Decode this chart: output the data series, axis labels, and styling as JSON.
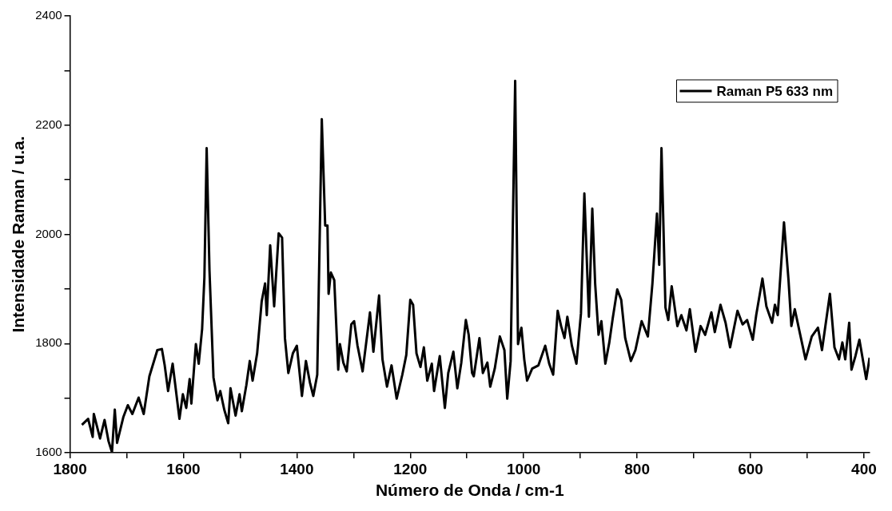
{
  "chart_data": {
    "type": "line",
    "xlabel": "Número de Onda / cm-1",
    "ylabel": "Intensidade Raman / u.a.",
    "xlim": [
      1800,
      390
    ],
    "ylim": [
      1600,
      2400
    ],
    "xticks": [
      1800,
      {
        "value": 1700,
        "label": null
      },
      1600,
      {
        "value": 1500,
        "label": null
      },
      1400,
      {
        "value": 1300,
        "label": null
      },
      1200,
      {
        "value": 1100,
        "label": null
      },
      1000,
      {
        "value": 900,
        "label": null
      },
      800,
      {
        "value": 700,
        "label": null
      },
      600,
      {
        "value": 500,
        "label": null
      },
      400
    ],
    "yticks": [
      1600,
      {
        "value": 1700,
        "label": null
      },
      1800,
      {
        "value": 1900,
        "label": null
      },
      2000,
      {
        "value": 2100,
        "label": null
      },
      2200,
      {
        "value": 2300,
        "label": null
      },
      2400
    ],
    "grid": false,
    "legend": "top right",
    "marker": "none",
    "line_style": "solid",
    "series": [
      {
        "name": "Raman P5 633 nm",
        "color": "#000000",
        "x": [
          1779,
          1768,
          1760,
          1758,
          1747,
          1739,
          1732,
          1726,
          1721,
          1717,
          1706,
          1698,
          1690,
          1679,
          1670,
          1660,
          1646,
          1638,
          1633,
          1627,
          1619,
          1607,
          1601,
          1595,
          1589,
          1586,
          1578,
          1573,
          1567,
          1563,
          1559,
          1554,
          1547,
          1540,
          1535,
          1528,
          1521,
          1517,
          1508,
          1501,
          1497,
          1489,
          1483,
          1478,
          1470,
          1462,
          1456,
          1453,
          1447,
          1440,
          1432,
          1426,
          1421,
          1415,
          1407,
          1400,
          1391,
          1384,
          1377,
          1371,
          1364,
          1356,
          1350,
          1346,
          1344,
          1340,
          1334,
          1327,
          1324,
          1318,
          1312,
          1304,
          1299,
          1293,
          1284,
          1271,
          1265,
          1255,
          1249,
          1241,
          1233,
          1224,
          1214,
          1207,
          1200,
          1195,
          1189,
          1182,
          1176,
          1170,
          1162,
          1158,
          1148,
          1139,
          1133,
          1124,
          1117,
          1110,
          1102,
          1097,
          1091,
          1088,
          1078,
          1072,
          1064,
          1059,
          1051,
          1042,
          1034,
          1029,
          1023,
          1015,
          1010,
          1004,
          999,
          994,
          985,
          974,
          962,
          955,
          948,
          940,
          934,
          928,
          923,
          915,
          907,
          899,
          893,
          885,
          879,
          874,
          868,
          863,
          856,
          849,
          843,
          835,
          828,
          821,
          811,
          803,
          792,
          781,
          773,
          765,
          761,
          757,
          750,
          745,
          739,
          729,
          722,
          713,
          707,
          697,
          688,
          680,
          669,
          663,
          653,
          644,
          636,
          623,
          614,
          606,
          596,
          590,
          579,
          572,
          562,
          557,
          552,
          541,
          533,
          528,
          522,
          514,
          503,
          492,
          481,
          474,
          460,
          452,
          444,
          438,
          433,
          426,
          422,
          415,
          408,
          401,
          396,
          390
        ],
        "values": [
          1651,
          1662,
          1629,
          1671,
          1626,
          1660,
          1621,
          1601,
          1679,
          1618,
          1665,
          1687,
          1671,
          1701,
          1671,
          1740,
          1788,
          1790,
          1760,
          1713,
          1763,
          1662,
          1707,
          1682,
          1735,
          1690,
          1799,
          1763,
          1827,
          1921,
          2158,
          1933,
          1738,
          1696,
          1713,
          1679,
          1654,
          1718,
          1668,
          1707,
          1676,
          1724,
          1768,
          1732,
          1782,
          1877,
          1910,
          1852,
          1980,
          1868,
          2002,
          1994,
          1810,
          1746,
          1782,
          1796,
          1704,
          1768,
          1729,
          1704,
          1743,
          2211,
          2016,
          2016,
          1891,
          1930,
          1916,
          1752,
          1799,
          1765,
          1749,
          1835,
          1841,
          1796,
          1749,
          1857,
          1785,
          1888,
          1771,
          1721,
          1760,
          1699,
          1743,
          1779,
          1880,
          1871,
          1782,
          1757,
          1793,
          1732,
          1763,
          1713,
          1777,
          1682,
          1746,
          1785,
          1718,
          1765,
          1843,
          1816,
          1746,
          1740,
          1810,
          1746,
          1765,
          1721,
          1754,
          1813,
          1788,
          1699,
          1768,
          2281,
          1799,
          1829,
          1771,
          1732,
          1754,
          1760,
          1796,
          1763,
          1743,
          1860,
          1832,
          1810,
          1849,
          1796,
          1763,
          1855,
          2075,
          1849,
          2047,
          1910,
          1816,
          1841,
          1763,
          1802,
          1846,
          1899,
          1880,
          1810,
          1768,
          1788,
          1841,
          1813,
          1910,
          2038,
          1944,
          2158,
          1866,
          1843,
          1905,
          1832,
          1852,
          1824,
          1863,
          1785,
          1832,
          1816,
          1857,
          1821,
          1871,
          1838,
          1793,
          1860,
          1835,
          1843,
          1807,
          1852,
          1919,
          1868,
          1838,
          1871,
          1852,
          2022,
          1916,
          1832,
          1863,
          1824,
          1771,
          1813,
          1829,
          1788,
          1891,
          1793,
          1771,
          1802,
          1771,
          1838,
          1752,
          1777,
          1807,
          1765,
          1735,
          1774
        ]
      }
    ]
  }
}
